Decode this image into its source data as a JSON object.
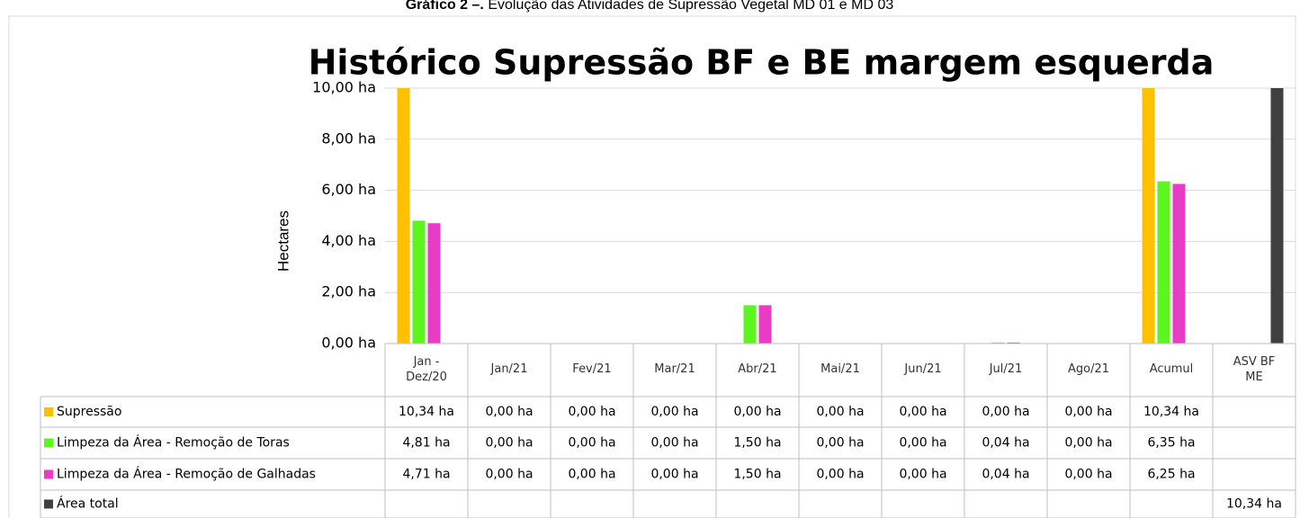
{
  "caption_label": "Gráfico 2 –.",
  "caption": "Evolução das Atividades de Supressão Vegetal MD 01 e MD 03",
  "chart_data": {
    "type": "bar",
    "title": "Histórico  Supressão  BF e BE margem esquerda",
    "y_label": "Hectares",
    "categories": [
      "Jan - Dez/20",
      "Jan/21",
      "Fev/21",
      "Mar/21",
      "Abr/21",
      "Mai/21",
      "Jun/21",
      "Jul/21",
      "Ago/21",
      "Acumul",
      "ASV BF ME"
    ],
    "ylim": [
      0,
      10
    ],
    "yticks": [
      {
        "value": 0,
        "label": "0,00 ha"
      },
      {
        "value": 2,
        "label": "2,00 ha"
      },
      {
        "value": 4,
        "label": "4,00 ha"
      },
      {
        "value": 6,
        "label": "6,00 ha"
      },
      {
        "value": 8,
        "label": "8,00 ha"
      },
      {
        "value": 10,
        "label": "10,00 ha"
      }
    ],
    "grid": true,
    "series": [
      {
        "name": "Supressão",
        "color": "#ffc000",
        "values": [
          10.34,
          0,
          0,
          0,
          0,
          0,
          0,
          0,
          0,
          10.34,
          null
        ],
        "value_labels": [
          "10,34 ha",
          "0,00 ha",
          "0,00 ha",
          "0,00 ha",
          "0,00 ha",
          "0,00 ha",
          "0,00 ha",
          "0,00 ha",
          "0,00 ha",
          "10,34 ha",
          null
        ]
      },
      {
        "name": "Limpeza da Área - Remoção de Toras",
        "color": "#5df51f",
        "values": [
          4.81,
          0,
          0,
          0,
          1.5,
          0,
          0,
          0.04,
          0,
          6.35,
          null
        ],
        "value_labels": [
          "4,81 ha",
          "0,00 ha",
          "0,00 ha",
          "0,00 ha",
          "1,50 ha",
          "0,00 ha",
          "0,00 ha",
          "0,04 ha",
          "0,00 ha",
          "6,35 ha",
          null
        ]
      },
      {
        "name": "Limpeza da Área - Remoção de Galhadas",
        "color": "#e83cc6",
        "values": [
          4.71,
          0,
          0,
          0,
          1.5,
          0,
          0,
          0.04,
          0,
          6.25,
          null
        ],
        "value_labels": [
          "4,71 ha",
          "0,00 ha",
          "0,00 ha",
          "0,00 ha",
          "1,50 ha",
          "0,00 ha",
          "0,00 ha",
          "0,04 ha",
          "0,00 ha",
          "6,25 ha",
          null
        ]
      },
      {
        "name": "Área total",
        "color": "#404040",
        "values": [
          null,
          null,
          null,
          null,
          null,
          null,
          null,
          null,
          null,
          null,
          10.34
        ],
        "value_labels": [
          null,
          null,
          null,
          null,
          null,
          null,
          null,
          null,
          null,
          null,
          "10,34 ha"
        ]
      }
    ]
  }
}
